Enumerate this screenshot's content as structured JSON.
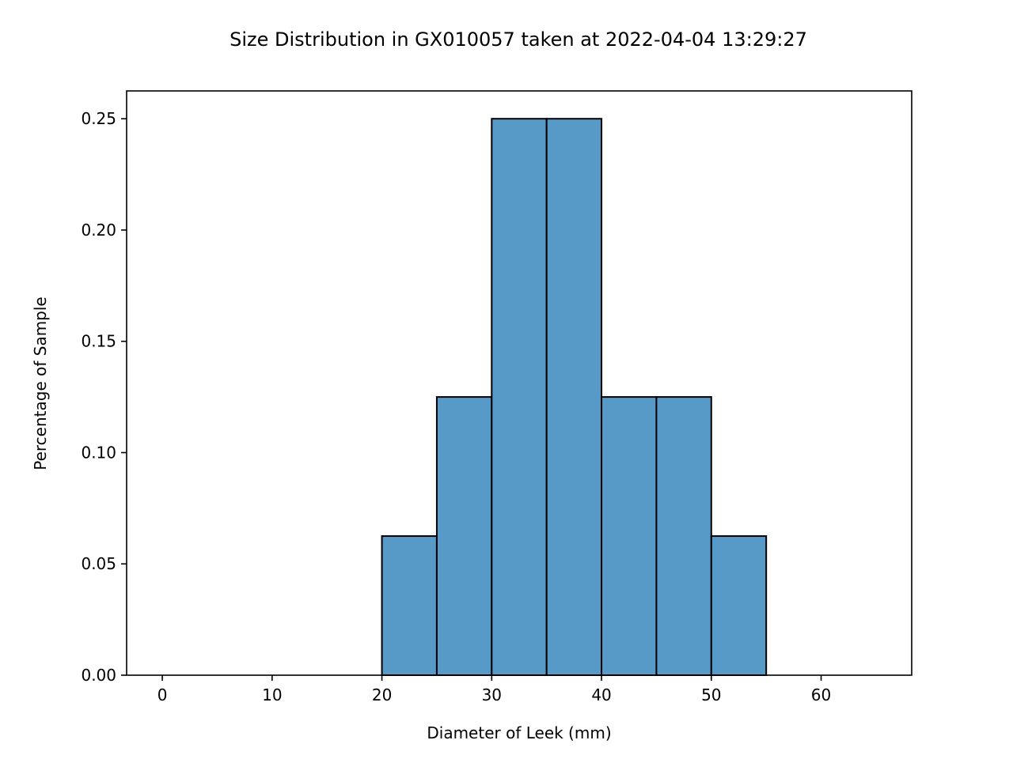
{
  "chart_data": {
    "type": "bar",
    "title": "Size Distribution in GX010057 taken at 2022-04-04 13:29:27",
    "xlabel": "Diameter of Leek (mm)",
    "ylabel": "Percentage of Sample",
    "xlim": [
      -3.25,
      68.25
    ],
    "ylim": [
      0,
      0.2625
    ],
    "xticks": [
      0,
      10,
      20,
      30,
      40,
      50,
      60
    ],
    "xtick_labels": [
      "0",
      "10",
      "20",
      "30",
      "40",
      "50",
      "60"
    ],
    "yticks": [
      0.0,
      0.05,
      0.1,
      0.15,
      0.2,
      0.25
    ],
    "ytick_labels": [
      "0.00",
      "0.05",
      "0.10",
      "0.15",
      "0.20",
      "0.25"
    ],
    "grid": false,
    "bin_edges": [
      20,
      25,
      30,
      35,
      40,
      45,
      50,
      55
    ],
    "values": [
      0.0625,
      0.125,
      0.25,
      0.25,
      0.125,
      0.125,
      0.0625
    ],
    "bar_color": "#5799c7",
    "edge_color": "#000000"
  }
}
